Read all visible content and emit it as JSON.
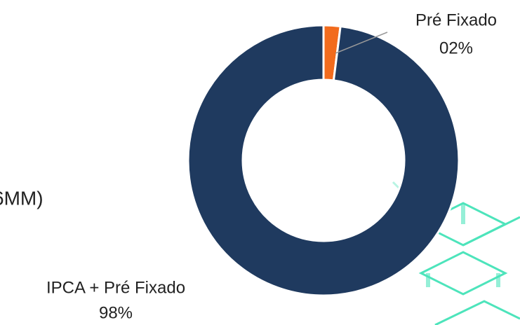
{
  "chart_data": {
    "type": "pie",
    "donut": true,
    "annotation": "6MM)",
    "categories": [
      "Pré Fixado",
      "IPCA + Pré Fixado"
    ],
    "values": [
      2,
      98
    ],
    "value_labels": [
      "02%",
      "98%"
    ],
    "colors": [
      "#f26b1d",
      "#1f3a5f"
    ]
  }
}
